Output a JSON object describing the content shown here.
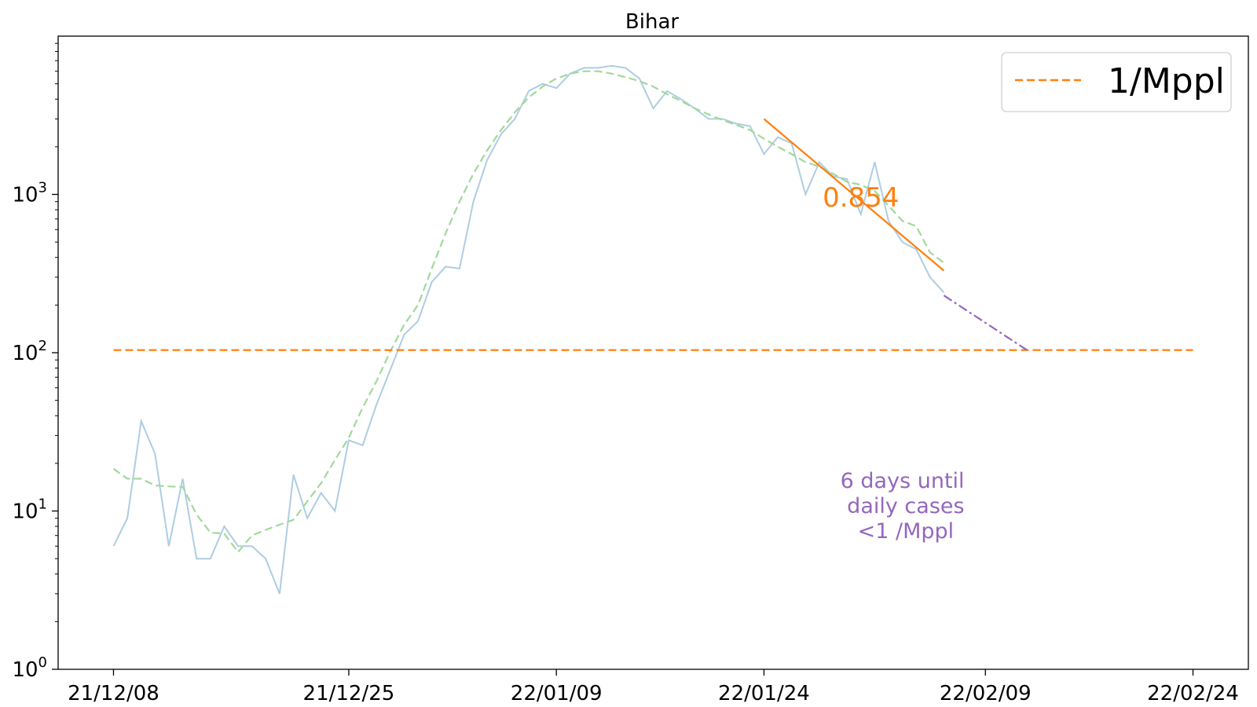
{
  "chart_data": {
    "type": "line",
    "title": "Bihar",
    "xlabel": "",
    "ylabel": "",
    "yscale": "log",
    "ylim": [
      1,
      10000
    ],
    "xlim": [
      "2021-12-04",
      "2022-02-28"
    ],
    "grid": false,
    "legend_position": "top-right",
    "x_ticks": [
      "2021-12-08",
      "2021-12-25",
      "2022-01-09",
      "2022-01-24",
      "2022-02-09",
      "2022-02-24"
    ],
    "x_tick_labels": [
      "21/12/08",
      "21/12/25",
      "22/01/09",
      "22/01/24",
      "22/02/09",
      "22/02/24"
    ],
    "y_ticks": [
      1,
      10,
      100,
      1000
    ],
    "y_tick_labels": [
      {
        "base": "10",
        "exp": "0"
      },
      {
        "base": "10",
        "exp": "1"
      },
      {
        "base": "10",
        "exp": "2"
      },
      {
        "base": "10",
        "exp": "3"
      }
    ],
    "series": [
      {
        "style": "solid",
        "color": "#aecde1",
        "points": [
          [
            "2021-12-08",
            6
          ],
          [
            "2021-12-09",
            9
          ],
          [
            "2021-12-10",
            37
          ],
          [
            "2021-12-11",
            23
          ],
          [
            "2021-12-12",
            6
          ],
          [
            "2021-12-13",
            16
          ],
          [
            "2021-12-14",
            5
          ],
          [
            "2021-12-15",
            5
          ],
          [
            "2021-12-16",
            8
          ],
          [
            "2021-12-17",
            6
          ],
          [
            "2021-12-18",
            6
          ],
          [
            "2021-12-19",
            5
          ],
          [
            "2021-12-20",
            3
          ],
          [
            "2021-12-21",
            17
          ],
          [
            "2021-12-22",
            9
          ],
          [
            "2021-12-23",
            13
          ],
          [
            "2021-12-24",
            10
          ],
          [
            "2021-12-25",
            28
          ],
          [
            "2021-12-26",
            26
          ],
          [
            "2021-12-27",
            47
          ],
          [
            "2021-12-28",
            78
          ],
          [
            "2021-12-29",
            130
          ],
          [
            "2021-12-30",
            158
          ],
          [
            "2021-12-31",
            280
          ],
          [
            "2022-01-01",
            350
          ],
          [
            "2022-01-02",
            340
          ],
          [
            "2022-01-03",
            900
          ],
          [
            "2022-01-04",
            1650
          ],
          [
            "2022-01-05",
            2400
          ],
          [
            "2022-01-06",
            3000
          ],
          [
            "2022-01-07",
            4500
          ],
          [
            "2022-01-08",
            5000
          ],
          [
            "2022-01-09",
            4700
          ],
          [
            "2022-01-10",
            5800
          ],
          [
            "2022-01-11",
            6300
          ],
          [
            "2022-01-12",
            6300
          ],
          [
            "2022-01-13",
            6500
          ],
          [
            "2022-01-14",
            6300
          ],
          [
            "2022-01-15",
            5400
          ],
          [
            "2022-01-16",
            3500
          ],
          [
            "2022-01-17",
            4500
          ],
          [
            "2022-01-18",
            4000
          ],
          [
            "2022-01-19",
            3500
          ],
          [
            "2022-01-20",
            3000
          ],
          [
            "2022-01-21",
            3000
          ],
          [
            "2022-01-22",
            2800
          ],
          [
            "2022-01-23",
            2700
          ],
          [
            "2022-01-24",
            1800
          ],
          [
            "2022-01-25",
            2300
          ],
          [
            "2022-01-26",
            2100
          ],
          [
            "2022-01-27",
            1000
          ],
          [
            "2022-01-28",
            1600
          ],
          [
            "2022-01-29",
            1300
          ],
          [
            "2022-01-30",
            1250
          ],
          [
            "2022-01-31",
            750
          ],
          [
            "2022-02-01",
            1600
          ],
          [
            "2022-02-02",
            680
          ],
          [
            "2022-02-03",
            500
          ],
          [
            "2022-02-04",
            450
          ],
          [
            "2022-02-05",
            300
          ],
          [
            "2022-02-06",
            240
          ]
        ]
      },
      {
        "style": "dashed",
        "color": "#a1d99b",
        "points": [
          [
            "2021-12-08",
            18.5
          ],
          [
            "2021-12-09",
            16
          ],
          [
            "2021-12-10",
            16
          ],
          [
            "2021-12-11",
            14.5
          ],
          [
            "2021-12-12",
            14.3
          ],
          [
            "2021-12-13",
            14.2
          ],
          [
            "2021-12-14",
            9.5
          ],
          [
            "2021-12-15",
            7.3
          ],
          [
            "2021-12-16",
            7.2
          ],
          [
            "2021-12-17",
            5.5
          ],
          [
            "2021-12-18",
            7
          ],
          [
            "2021-12-19",
            7.6
          ],
          [
            "2021-12-20",
            8.2
          ],
          [
            "2021-12-21",
            8.8
          ],
          [
            "2021-12-22",
            11.5
          ],
          [
            "2021-12-23",
            15
          ],
          [
            "2021-12-24",
            21
          ],
          [
            "2021-12-25",
            29
          ],
          [
            "2021-12-26",
            45
          ],
          [
            "2021-12-27",
            66
          ],
          [
            "2021-12-28",
            102
          ],
          [
            "2021-12-29",
            150
          ],
          [
            "2021-12-30",
            200
          ],
          [
            "2021-12-31",
            340
          ],
          [
            "2022-01-01",
            570
          ],
          [
            "2022-01-02",
            900
          ],
          [
            "2022-01-03",
            1350
          ],
          [
            "2022-01-04",
            1900
          ],
          [
            "2022-01-05",
            2550
          ],
          [
            "2022-01-06",
            3300
          ],
          [
            "2022-01-07",
            4100
          ],
          [
            "2022-01-08",
            4800
          ],
          [
            "2022-01-09",
            5400
          ],
          [
            "2022-01-10",
            5800
          ],
          [
            "2022-01-11",
            6000
          ],
          [
            "2022-01-12",
            6000
          ],
          [
            "2022-01-13",
            5800
          ],
          [
            "2022-01-14",
            5500
          ],
          [
            "2022-01-15",
            5200
          ],
          [
            "2022-01-16",
            4800
          ],
          [
            "2022-01-17",
            4300
          ],
          [
            "2022-01-18",
            3900
          ],
          [
            "2022-01-19",
            3500
          ],
          [
            "2022-01-20",
            3200
          ],
          [
            "2022-01-21",
            2950
          ],
          [
            "2022-01-22",
            2750
          ],
          [
            "2022-01-23",
            2550
          ],
          [
            "2022-01-24",
            2250
          ],
          [
            "2022-01-25",
            2000
          ],
          [
            "2022-01-26",
            1800
          ],
          [
            "2022-01-27",
            1600
          ],
          [
            "2022-01-28",
            1500
          ],
          [
            "2022-01-29",
            1350
          ],
          [
            "2022-01-30",
            1200
          ],
          [
            "2022-01-31",
            1150
          ],
          [
            "2022-02-01",
            1050
          ],
          [
            "2022-02-02",
            850
          ],
          [
            "2022-02-03",
            680
          ],
          [
            "2022-02-04",
            630
          ],
          [
            "2022-02-05",
            430
          ],
          [
            "2022-02-06",
            370
          ]
        ]
      },
      {
        "name": "1/Mppl",
        "style": "dashed",
        "color": "#ff7f0e",
        "points": [
          [
            "2021-12-08",
            104
          ],
          [
            "2022-02-24",
            104
          ]
        ]
      },
      {
        "style": "solid",
        "color": "#ff7f0e",
        "points": [
          [
            "2022-01-24",
            3000
          ],
          [
            "2022-02-06",
            330
          ]
        ]
      },
      {
        "style": "dashdot",
        "color": "#9467bd",
        "points": [
          [
            "2022-02-06",
            230
          ],
          [
            "2022-02-12",
            104
          ]
        ]
      }
    ],
    "annotations": [
      {
        "text": "0.854",
        "x": "2022-01-31",
        "y": 840,
        "color": "#ff7f0e"
      },
      {
        "lines": [
          "6 days until",
          " daily cases",
          " <1 /Mppl"
        ],
        "x": "2022-02-03",
        "y": 14,
        "color": "#9467bd"
      }
    ],
    "legend": [
      {
        "label": "1/Mppl",
        "color": "#ff7f0e",
        "style": "dashed"
      }
    ]
  }
}
